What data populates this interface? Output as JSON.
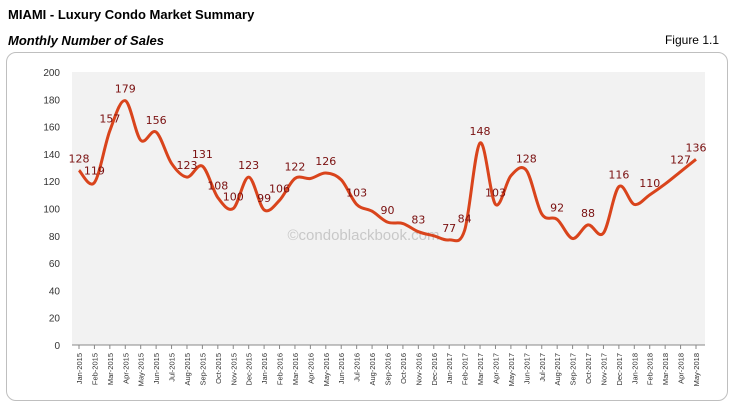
{
  "header": {
    "title": "MIAMI - Luxury Condo Market Summary",
    "subtitle": "Monthly Number of Sales",
    "figure": "Figure 1.1"
  },
  "watermark": "©condoblackbook.com",
  "chart_data": {
    "type": "line",
    "title": "Monthly Number of Sales",
    "xlabel": "",
    "ylabel": "",
    "ylim": [
      0,
      200
    ],
    "yticks": [
      "0",
      "20",
      "40",
      "60",
      "80",
      "100",
      "120",
      "140",
      "160",
      "180",
      "200"
    ],
    "grid": false,
    "line_color": "#d9441c",
    "label_color": "#7a1010",
    "categories": [
      "Jan-2015",
      "Feb-2015",
      "Mar-2015",
      "Apr-2015",
      "May-2015",
      "Jun-2015",
      "Jul-2015",
      "Aug-2015",
      "Sep-2015",
      "Oct-2015",
      "Nov-2015",
      "Dec-2015",
      "Jan-2016",
      "Feb-2016",
      "Mar-2016",
      "Apr-2016",
      "May-2016",
      "Jun-2016",
      "Jul-2016",
      "Aug-2016",
      "Sep-2016",
      "Oct-2016",
      "Nov-2016",
      "Dec-2016",
      "Jan-2017",
      "Feb-2017",
      "Mar-2017",
      "Apr-2017",
      "May-2017",
      "Jun-2017",
      "Jul-2017",
      "Aug-2017",
      "Sep-2017",
      "Oct-2017",
      "Nov-2017",
      "Dec-2017",
      "Jan-2018",
      "Feb-2018",
      "Mar-2018",
      "Apr-2018",
      "May-2018"
    ],
    "values": [
      128,
      119,
      157,
      179,
      150,
      156,
      133,
      123,
      131,
      108,
      100,
      123,
      99,
      106,
      122,
      122,
      126,
      121,
      103,
      98,
      90,
      89,
      83,
      80,
      77,
      84,
      148,
      103,
      124,
      128,
      96,
      92,
      78,
      88,
      82,
      116,
      103,
      110,
      118,
      127,
      136
    ],
    "data_labels": [
      {
        "month": "Jan-2015",
        "text": "128"
      },
      {
        "month": "Feb-2015",
        "text": "119"
      },
      {
        "month": "Mar-2015",
        "text": "157"
      },
      {
        "month": "Apr-2015",
        "text": "179"
      },
      {
        "month": "Jun-2015",
        "text": "156"
      },
      {
        "month": "Aug-2015",
        "text": "123"
      },
      {
        "month": "Sep-2015",
        "text": "131"
      },
      {
        "month": "Oct-2015",
        "text": "108"
      },
      {
        "month": "Nov-2015",
        "text": "100"
      },
      {
        "month": "Dec-2015",
        "text": "123"
      },
      {
        "month": "Jan-2016",
        "text": "99"
      },
      {
        "month": "Feb-2016",
        "text": "106"
      },
      {
        "month": "Mar-2016",
        "text": "122"
      },
      {
        "month": "May-2016",
        "text": "126"
      },
      {
        "month": "Jul-2016",
        "text": "103"
      },
      {
        "month": "Sep-2016",
        "text": "90"
      },
      {
        "month": "Nov-2016",
        "text": "83"
      },
      {
        "month": "Jan-2017",
        "text": "77"
      },
      {
        "month": "Feb-2017",
        "text": "84"
      },
      {
        "month": "Mar-2017",
        "text": "148"
      },
      {
        "month": "Apr-2017",
        "text": "103"
      },
      {
        "month": "Jun-2017",
        "text": "128"
      },
      {
        "month": "Aug-2017",
        "text": "92"
      },
      {
        "month": "Oct-2017",
        "text": "88"
      },
      {
        "month": "Dec-2017",
        "text": "116"
      },
      {
        "month": "Feb-2018",
        "text": "110"
      },
      {
        "month": "Apr-2018",
        "text": "127"
      },
      {
        "month": "May-2018",
        "text": "136"
      }
    ]
  }
}
